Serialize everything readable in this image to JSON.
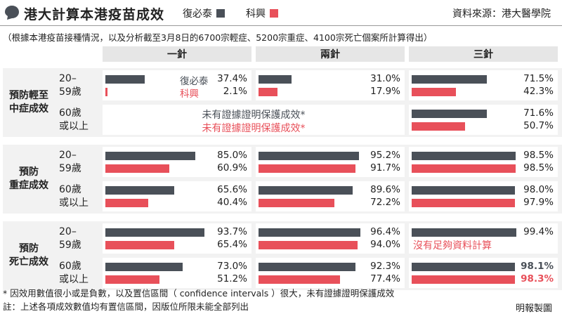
{
  "title": "港大計算本港疫苗成效",
  "source": "資料來源：港大醫學院",
  "subtitle": "（根據本港疫苗接種情況，以及分析截至3月8日的6700宗輕症、5200宗重症、4100宗死亡個案所計算得出）",
  "colors": {
    "sinovac": "#4a5058",
    "biontech": "#e8505a",
    "panel_bg": "#f2f2f2",
    "header_bg": "#e6e6e6"
  },
  "legend": [
    {
      "name": "復必泰",
      "color": "#4a5058"
    },
    {
      "name": "科興",
      "color": "#e8505a"
    }
  ],
  "columns": [
    "一針",
    "兩針",
    "三針"
  ],
  "footnotes": [
    "* 因效用數值很小或是負數，以及置信區間（ confidence intervals ）很大，未有證據證明保護成效",
    "註：上述各項成效數值均有置信區間，因版位所限未能全部列出"
  ],
  "credit": "明報製圖",
  "chart_data": {
    "type": "bar",
    "unit": "%",
    "xlim": [
      0,
      100
    ],
    "series_names": [
      "復必泰",
      "科興"
    ],
    "groups": [
      {
        "label": "預防輕至中症成效",
        "label_lines": [
          "預防輕至",
          "中症成效"
        ],
        "rows": [
          {
            "age_lines": [
              "20–",
              "59歲"
            ],
            "cells": [
              {
                "type": "bars",
                "values": [
                  37.4,
                  2.1
                ],
                "labels": [
                  "37.4%",
                  "2.1%"
                ],
                "inline_names": true
              },
              {
                "type": "bars",
                "values": [
                  31.0,
                  17.9
                ],
                "labels": [
                  "31.0%",
                  "17.9%"
                ]
              },
              {
                "type": "bars",
                "values": [
                  71.5,
                  42.3
                ],
                "labels": [
                  "71.5%",
                  "42.3%"
                ]
              }
            ]
          },
          {
            "age_lines": [
              "60歲",
              "或以上"
            ],
            "cells": [
              {
                "type": "text",
                "lines": [
                  "未有證據證明保護成效*",
                  "未有證據證明保護成效*"
                ],
                "span": 2
              },
              {
                "type": "bars",
                "values": [
                  71.6,
                  50.7
                ],
                "labels": [
                  "71.6%",
                  "50.7%"
                ]
              }
            ]
          }
        ]
      },
      {
        "label": "預防重症成效",
        "label_lines": [
          "預防",
          "重症成效"
        ],
        "rows": [
          {
            "age_lines": [
              "20–",
              "59歲"
            ],
            "cells": [
              {
                "type": "bars",
                "values": [
                  85.0,
                  60.9
                ],
                "labels": [
                  "85.0%",
                  "60.9%"
                ]
              },
              {
                "type": "bars",
                "values": [
                  95.2,
                  91.7
                ],
                "labels": [
                  "95.2%",
                  "91.7%"
                ]
              },
              {
                "type": "bars",
                "values": [
                  98.5,
                  98.5
                ],
                "labels": [
                  "98.5%",
                  "98.5%"
                ]
              }
            ]
          },
          {
            "age_lines": [
              "60歲",
              "或以上"
            ],
            "cells": [
              {
                "type": "bars",
                "values": [
                  65.6,
                  40.4
                ],
                "labels": [
                  "65.6%",
                  "40.4%"
                ]
              },
              {
                "type": "bars",
                "values": [
                  89.6,
                  72.2
                ],
                "labels": [
                  "89.6%",
                  "72.2%"
                ]
              },
              {
                "type": "bars",
                "values": [
                  98.0,
                  97.9
                ],
                "labels": [
                  "98.0%",
                  "97.9%"
                ]
              }
            ]
          }
        ]
      },
      {
        "label": "預防死亡成效",
        "label_lines": [
          "預防",
          "死亡成效"
        ],
        "rows": [
          {
            "age_lines": [
              "20–",
              "59歲"
            ],
            "cells": [
              {
                "type": "bars",
                "values": [
                  93.7,
                  65.4
                ],
                "labels": [
                  "93.7%",
                  "65.4%"
                ]
              },
              {
                "type": "bars",
                "values": [
                  96.4,
                  94.0
                ],
                "labels": [
                  "96.4%",
                  "94.0%"
                ]
              },
              {
                "type": "bars",
                "values": [
                  99.4,
                  null
                ],
                "labels": [
                  "99.4%",
                  null
                ],
                "note": "沒有足夠資料計算"
              }
            ]
          },
          {
            "age_lines": [
              "60歲",
              "或以上"
            ],
            "cells": [
              {
                "type": "bars",
                "values": [
                  73.0,
                  51.2
                ],
                "labels": [
                  "73.0%",
                  "51.2%"
                ]
              },
              {
                "type": "bars",
                "values": [
                  92.3,
                  77.4
                ],
                "labels": [
                  "92.3%",
                  "77.4%"
                ]
              },
              {
                "type": "bars",
                "values": [
                  98.1,
                  98.3
                ],
                "labels": [
                  "98.1%",
                  "98.3%"
                ],
                "bold": true
              }
            ]
          }
        ]
      }
    ]
  }
}
